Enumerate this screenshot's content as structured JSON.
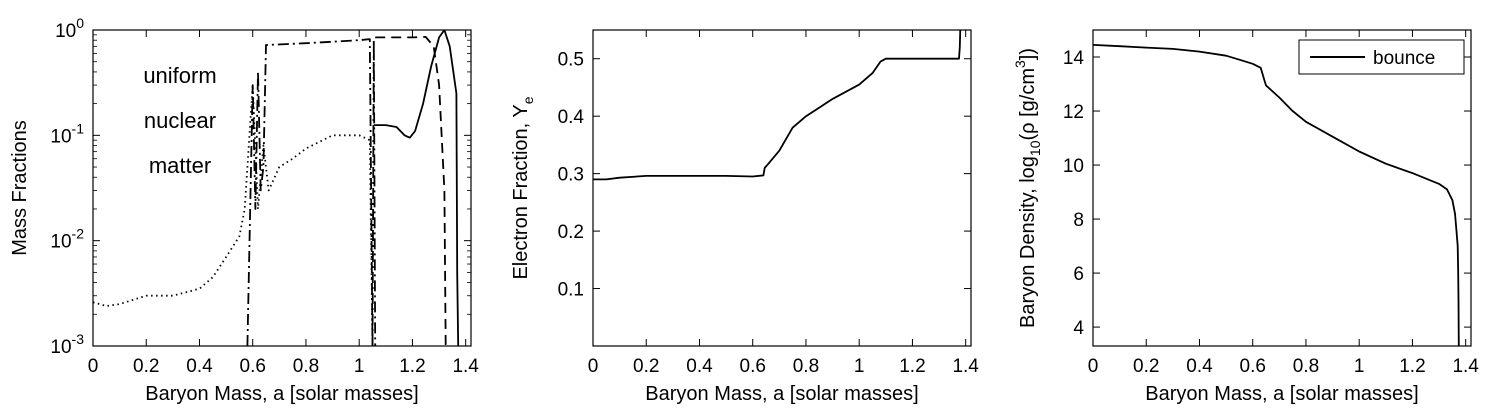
{
  "chart_data": [
    {
      "type": "line",
      "panel": "mass-fractions",
      "xlabel": "Baryon Mass, a [solar masses]",
      "ylabel": "Mass Fractions",
      "xlim": [
        0,
        1.42
      ],
      "ylim": [
        0.001,
        1
      ],
      "yscale": "log",
      "xticks": [
        0,
        0.2,
        0.4,
        0.6,
        0.8,
        1,
        1.2,
        1.4
      ],
      "xtick_labels": [
        "0",
        "0.2",
        "0.4",
        "0.6",
        "0.8",
        "1",
        "1.2",
        "1.4"
      ],
      "yticks": [
        0.001,
        0.01,
        0.1,
        1
      ],
      "ytick_labels": [
        {
          "base": "10",
          "exp": "-3"
        },
        {
          "base": "10",
          "exp": "-2"
        },
        {
          "base": "10",
          "exp": "-1"
        },
        {
          "base": "10",
          "exp": "0"
        }
      ],
      "annotation": [
        "uniform",
        "nuclear",
        "matter"
      ],
      "grid": false,
      "series": [
        {
          "style": "dotted",
          "color": "#000000",
          "x": [
            0.0,
            0.05,
            0.1,
            0.2,
            0.3,
            0.4,
            0.45,
            0.5,
            0.55,
            0.57,
            0.6,
            0.62,
            0.64,
            0.66,
            0.7,
            0.75,
            0.8,
            0.9,
            1.0,
            1.04,
            1.05
          ],
          "y": [
            0.0026,
            0.0024,
            0.0025,
            0.003,
            0.003,
            0.0035,
            0.0045,
            0.007,
            0.011,
            0.02,
            0.3,
            0.02,
            0.08,
            0.03,
            0.05,
            0.06,
            0.075,
            0.1,
            0.1,
            0.09,
            0.001
          ]
        },
        {
          "style": "dash-dot",
          "color": "#000000",
          "x": [
            0.58,
            0.6,
            0.61,
            0.62,
            0.63,
            0.64,
            0.65,
            0.8,
            1.0,
            1.04,
            1.05,
            1.055,
            1.06
          ],
          "y": [
            0.001,
            0.3,
            0.02,
            0.4,
            0.03,
            0.05,
            0.72,
            0.75,
            0.8,
            0.82,
            0.001,
            0.8,
            0.001
          ]
        },
        {
          "style": "dashed",
          "color": "#000000",
          "x": [
            1.06,
            1.1,
            1.2,
            1.25,
            1.28,
            1.3,
            1.32,
            1.325
          ],
          "y": [
            0.85,
            0.85,
            0.85,
            0.86,
            0.7,
            0.3,
            0.03,
            0.001
          ]
        },
        {
          "style": "solid",
          "color": "#000000",
          "x": [
            1.055,
            1.1,
            1.14,
            1.17,
            1.19,
            1.21,
            1.24,
            1.27,
            1.3,
            1.32,
            1.34,
            1.365,
            1.368,
            1.372
          ],
          "y": [
            0.125,
            0.125,
            0.12,
            0.1,
            0.095,
            0.11,
            0.2,
            0.45,
            0.85,
            1.0,
            0.7,
            0.25,
            0.005,
            0.001
          ]
        }
      ]
    },
    {
      "type": "line",
      "panel": "electron-fraction",
      "xlabel": "Baryon Mass, a [solar masses]",
      "ylabel": "Electron Fraction, Y",
      "ylabel_sub": "e",
      "xlim": [
        0,
        1.42
      ],
      "ylim": [
        0,
        0.55
      ],
      "yscale": "linear",
      "xticks": [
        0,
        0.2,
        0.4,
        0.6,
        0.8,
        1,
        1.2,
        1.4
      ],
      "xtick_labels": [
        "0",
        "0.2",
        "0.4",
        "0.6",
        "0.8",
        "1",
        "1.2",
        "1.4"
      ],
      "yticks": [
        0.1,
        0.2,
        0.3,
        0.4,
        0.5
      ],
      "ytick_labels": [
        "0.1",
        "0.2",
        "0.3",
        "0.4",
        "0.5"
      ],
      "grid": false,
      "series": [
        {
          "style": "solid",
          "color": "#000000",
          "x": [
            0.0,
            0.05,
            0.1,
            0.2,
            0.3,
            0.4,
            0.5,
            0.6,
            0.64,
            0.645,
            0.66,
            0.7,
            0.75,
            0.8,
            0.85,
            0.9,
            1.0,
            1.05,
            1.08,
            1.1,
            1.2,
            1.3,
            1.375,
            1.378,
            1.38
          ],
          "y": [
            0.29,
            0.29,
            0.293,
            0.296,
            0.296,
            0.296,
            0.296,
            0.295,
            0.297,
            0.31,
            0.318,
            0.34,
            0.38,
            0.4,
            0.415,
            0.43,
            0.455,
            0.475,
            0.495,
            0.5,
            0.5,
            0.5,
            0.5,
            0.52,
            0.56
          ]
        }
      ]
    },
    {
      "type": "line",
      "panel": "baryon-density",
      "xlabel": "Baryon Mass, a [solar masses]",
      "ylabel_parts": {
        "pre": "Baryon Density, log",
        "sub": "10",
        "mid": "(ρ [g/cm",
        "sup": "3",
        "post": "])"
      },
      "xlim": [
        0,
        1.42
      ],
      "ylim": [
        3.3,
        15
      ],
      "yscale": "linear",
      "xticks": [
        0,
        0.2,
        0.4,
        0.6,
        0.8,
        1,
        1.2,
        1.4
      ],
      "xtick_labels": [
        "0",
        "0.2",
        "0.4",
        "0.6",
        "0.8",
        "1",
        "1.2",
        "1.4"
      ],
      "yticks": [
        4,
        6,
        8,
        10,
        12,
        14
      ],
      "ytick_labels": [
        "4",
        "6",
        "8",
        "10",
        "12",
        "14"
      ],
      "grid": false,
      "legend_position": "top-right",
      "series": [
        {
          "name": "bounce",
          "style": "solid",
          "color": "#000000",
          "x": [
            0.0,
            0.1,
            0.2,
            0.3,
            0.4,
            0.5,
            0.55,
            0.6,
            0.63,
            0.645,
            0.65,
            0.7,
            0.75,
            0.8,
            0.9,
            1.0,
            1.1,
            1.2,
            1.3,
            1.33,
            1.35,
            1.36,
            1.365,
            1.37,
            1.372,
            1.373,
            1.374
          ],
          "y": [
            14.45,
            14.4,
            14.35,
            14.3,
            14.2,
            14.05,
            13.9,
            13.75,
            13.6,
            13.1,
            12.95,
            12.5,
            12.0,
            11.6,
            11.05,
            10.5,
            10.05,
            9.7,
            9.3,
            9.1,
            8.7,
            8.2,
            7.6,
            7.0,
            6.0,
            5.0,
            3.3
          ]
        }
      ]
    }
  ]
}
